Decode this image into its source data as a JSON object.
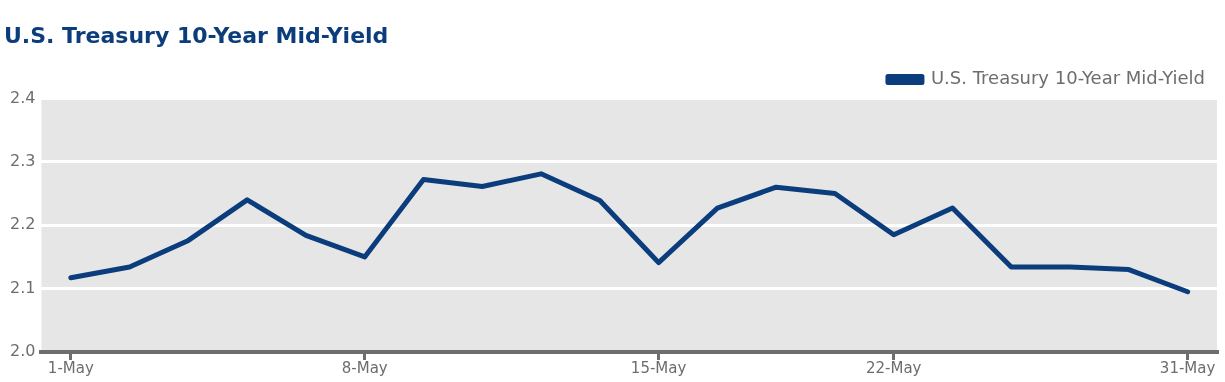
{
  "chart_data": {
    "type": "line",
    "title": "U.S. Treasury 10-Year Mid-Yield",
    "categories": [
      "1-May",
      null,
      null,
      null,
      null,
      "8-May",
      null,
      null,
      null,
      null,
      "15-May",
      null,
      null,
      null,
      "22-May",
      null,
      null,
      null,
      null,
      "31-May"
    ],
    "series": [
      {
        "name": "U.S. Treasury 10-Year Mid-Yield",
        "color": "#0b3d7c",
        "values": [
          2.117,
          2.134,
          2.176,
          2.24,
          2.184,
          2.15,
          2.272,
          2.261,
          2.281,
          2.239,
          2.141,
          2.227,
          2.26,
          2.25,
          2.185,
          2.227,
          2.134,
          2.134,
          2.13,
          2.095
        ]
      }
    ],
    "ylim": [
      2.0,
      2.4
    ],
    "yticks": [
      {
        "value": 2.0,
        "label": "2.0"
      },
      {
        "value": 2.1,
        "label": "2.1"
      },
      {
        "value": 2.2,
        "label": "2.2"
      },
      {
        "value": 2.3,
        "label": "2.3"
      },
      {
        "value": 2.4,
        "label": "2.4"
      }
    ],
    "grid": "y",
    "legend": "top right",
    "marker": "none",
    "line_style": "solid"
  }
}
